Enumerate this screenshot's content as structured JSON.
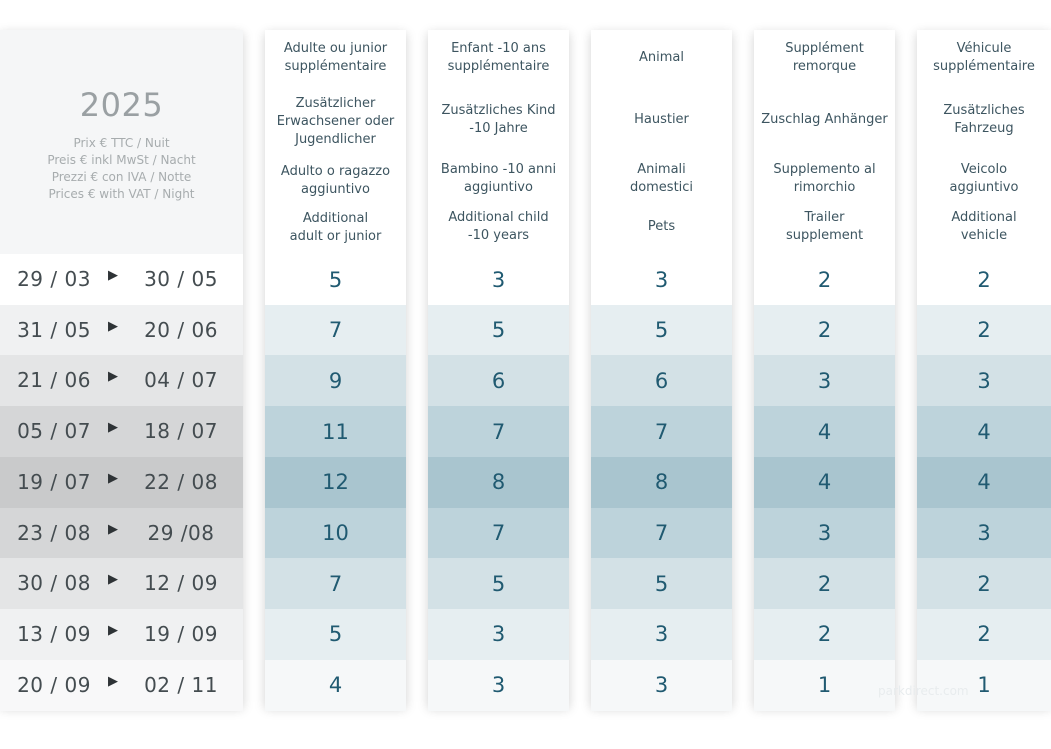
{
  "year": "2025",
  "price_note": [
    "Prix € TTC / Nuit",
    "Preis € inkl MwSt / Nacht",
    "Prezzi € con IVA / Notte",
    "Prices € with VAT / Night"
  ],
  "columns": [
    {
      "labels": [
        "Adulte ou junior\nsupplémentaire",
        "Zusätzlicher\nErwachsener oder\nJugendlicher",
        "Adulto o ragazzo\naggiuntivo",
        "Additional\nadult or junior"
      ],
      "values": [
        "5",
        "7",
        "9",
        "11",
        "12",
        "10",
        "7",
        "5",
        "4"
      ]
    },
    {
      "labels": [
        "Enfant -10 ans\nsupplémentaire",
        "Zusätzliches Kind\n-10 Jahre",
        "Bambino -10 anni\naggiuntivo",
        "Additional child\n-10 years"
      ],
      "values": [
        "3",
        "5",
        "6",
        "7",
        "8",
        "7",
        "5",
        "3",
        "3"
      ]
    },
    {
      "labels": [
        "Animal",
        "Haustier",
        "Animali\ndomestici",
        "Pets"
      ],
      "values": [
        "3",
        "5",
        "6",
        "7",
        "8",
        "7",
        "5",
        "3",
        "3"
      ]
    },
    {
      "labels": [
        "Supplément\nremorque",
        "Zuschlag Anhänger",
        "Supplemento al\nrimorchio",
        "Trailer\nsupplement"
      ],
      "values": [
        "2",
        "2",
        "3",
        "4",
        "4",
        "3",
        "2",
        "2",
        "1"
      ]
    },
    {
      "labels": [
        "Véhicule\nsupplémentaire",
        "Zusätzliches\nFahrzeug",
        "Veicolo\naggiuntivo",
        "Additional\nvehicle"
      ],
      "values": [
        "2",
        "2",
        "3",
        "4",
        "4",
        "3",
        "2",
        "2",
        "1"
      ]
    }
  ],
  "periods": [
    {
      "from": "29 / 03",
      "to": "30 / 05"
    },
    {
      "from": "31 / 05",
      "to": "20 / 06"
    },
    {
      "from": "21 / 06",
      "to": "04 / 07"
    },
    {
      "from": "05 / 07",
      "to": "18 / 07"
    },
    {
      "from": "19 / 07",
      "to": "22 / 08"
    },
    {
      "from": "23 / 08",
      "to": "29 /08"
    },
    {
      "from": "30 / 08",
      "to": "12 / 09"
    },
    {
      "from": "13 / 09",
      "to": "19 / 09"
    },
    {
      "from": "20 / 09",
      "to": "02 / 11"
    }
  ],
  "arrow_glyph": "▶",
  "date_row_colors": [
    "#ffffff",
    "#f0f1f2",
    "#e4e5e6",
    "#d5d6d7",
    "#c9cacb",
    "#d5d6d7",
    "#e4e5e6",
    "#f0f1f2",
    "#f8f8f9"
  ],
  "value_row_colors": [
    "#ffffff",
    "#e6eef1",
    "#d3e1e6",
    "#bdd3db",
    "#a9c5cf",
    "#bdd3db",
    "#d3e1e6",
    "#e6eef1",
    "#f6f8f9"
  ],
  "watermark": "parkdirect.com"
}
